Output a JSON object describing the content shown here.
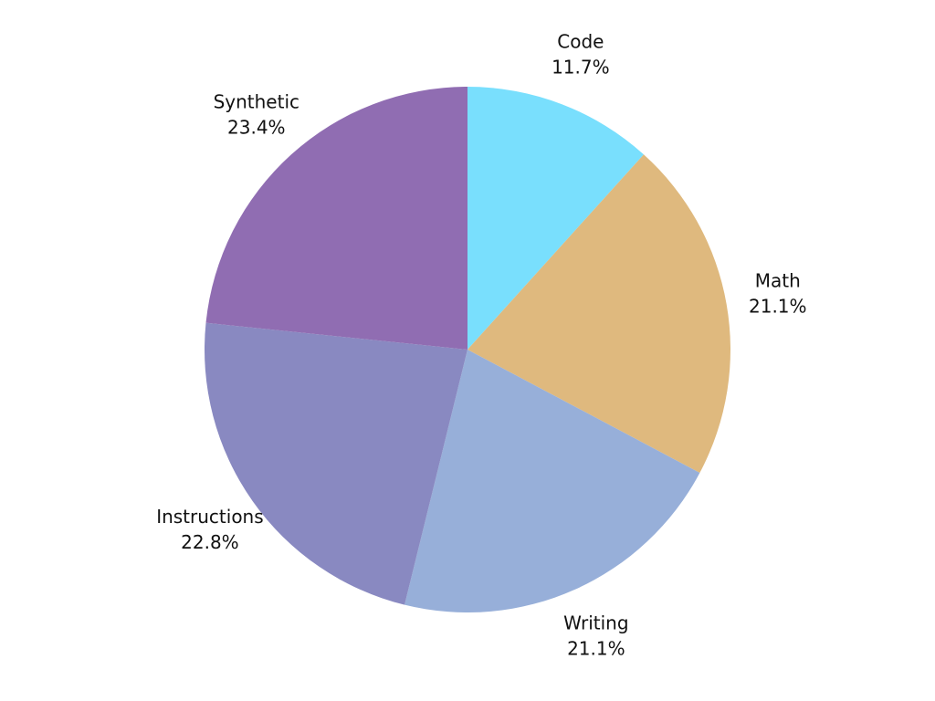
{
  "chart_data": {
    "type": "pie",
    "categories": [
      "Code",
      "Math",
      "Writing",
      "Instructions",
      "Synthetic"
    ],
    "values": [
      11.7,
      21.1,
      21.1,
      22.8,
      23.4
    ],
    "value_labels": [
      "11.7%",
      "21.1%",
      "21.1%",
      "22.8%",
      "23.4%"
    ],
    "colors": [
      "#79dffd",
      "#dfb97e",
      "#97afd9",
      "#8989c1",
      "#906db2"
    ]
  }
}
